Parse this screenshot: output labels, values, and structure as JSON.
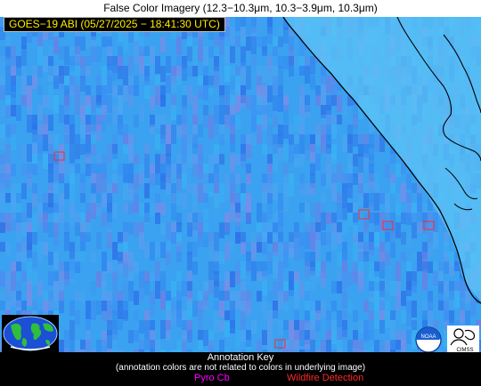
{
  "header": {
    "title": "False Color Imagery (12.3−10.3μm, 10.3−3.9μm, 10.3μm)",
    "timestamp": "GOES−19 ABI (05/27/2025 − 18:41:30 UTC)"
  },
  "annotation_key": {
    "title": "Annotation Key",
    "note": "(annotation colors are not related to colors in underlying image)",
    "pyro_label": "Pyro Cb",
    "wildfire_label": "Wildfire Detection",
    "pyro_color": "#ff00ff",
    "wildfire_color": "#ff2a2a"
  },
  "colors": {
    "ocean_base": "#3aa2f0",
    "land": "#5cc4f6",
    "coastline": "#000000"
  },
  "logos": {
    "left_icon": "globe-map-icon",
    "noaa_text": "NOAA",
    "cimss_text": "CIMSS"
  }
}
